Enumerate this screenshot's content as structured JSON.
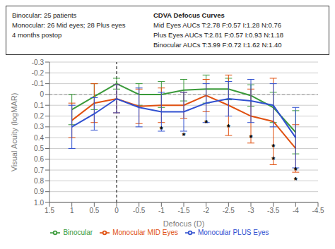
{
  "chart_data": {
    "type": "line",
    "title": "CDVA Defocus Curves",
    "subtitle": [
      "Binocular: 25 patients",
      "Monocular: 26 Mid eyes; 28 Plus eyes",
      "4 months postop"
    ],
    "annotations": [
      {
        "text": "Mid Eyes AUCs T:2.78 F:0.57 I:1.28 N:0.76"
      },
      {
        "text": "Plus Eyes AUCs T:2.81 F:0.57 I:0.93 N:1.18"
      },
      {
        "text": "Binocular AUCs T:3.99 F:0.72 I:1.62 N:1.40"
      },
      {
        "x": -1.0,
        "y": 0.3,
        "text": "*"
      },
      {
        "x": -1.5,
        "y": 0.36,
        "text": "*"
      },
      {
        "x": -2.0,
        "y": 0.24,
        "text": "*"
      },
      {
        "x": -2.5,
        "y": 0.28,
        "text": "*"
      },
      {
        "x": -3.0,
        "y": 0.38,
        "text": "*"
      },
      {
        "x": -3.5,
        "y": 0.46,
        "text": "*"
      },
      {
        "x": -3.5,
        "y": 0.58,
        "text": "*"
      },
      {
        "x": -4.0,
        "y": 0.68,
        "text": "*"
      },
      {
        "x": -4.0,
        "y": 0.77,
        "text": "*"
      }
    ],
    "x_label": "Defocus (D)",
    "y_label": "Visual Acuity (logMAR)",
    "x": [
      1.0,
      0.5,
      0.0,
      -0.5,
      -1.0,
      -1.5,
      -2.0,
      -2.5,
      -3.0,
      -3.5,
      -4.0
    ],
    "series": [
      {
        "name": "Binocular",
        "color": "#3a9a3a",
        "values": [
          0.14,
          0.02,
          -0.1,
          0.0,
          0.0,
          -0.04,
          -0.05,
          -0.05,
          0.01,
          0.12,
          0.35
        ],
        "error_upper": [
          0.14,
          0.12,
          0.05,
          0.1,
          0.12,
          0.1,
          0.13,
          0.1,
          0.1,
          0.14,
          0.2
        ],
        "error_lower": [
          0.14,
          0.12,
          0.05,
          0.1,
          0.12,
          0.1,
          0.13,
          0.1,
          0.1,
          0.14,
          0.2
        ]
      },
      {
        "name": "Monocular MID Eyes",
        "color": "#e05010",
        "values": [
          0.24,
          0.08,
          0.04,
          0.11,
          0.1,
          0.1,
          0.01,
          0.1,
          0.2,
          0.25,
          0.5
        ],
        "error_upper": [
          0.16,
          0.18,
          0.13,
          0.16,
          0.16,
          0.12,
          0.15,
          0.28,
          0.25,
          0.4,
          0.22
        ],
        "error_lower": [
          0.16,
          0.18,
          0.13,
          0.16,
          0.16,
          0.12,
          0.15,
          0.28,
          0.25,
          0.4,
          0.22
        ]
      },
      {
        "name": "Monocular PLUS Eyes",
        "color": "#3050d0",
        "values": [
          0.3,
          0.18,
          0.04,
          0.12,
          0.16,
          0.16,
          0.08,
          0.04,
          0.06,
          0.1,
          0.4
        ],
        "error_upper": [
          0.2,
          0.15,
          0.13,
          0.18,
          0.18,
          0.18,
          0.18,
          0.16,
          0.2,
          0.2,
          0.28
        ],
        "error_lower": [
          0.2,
          0.15,
          0.13,
          0.18,
          0.18,
          0.18,
          0.18,
          0.16,
          0.2,
          0.2,
          0.28
        ]
      }
    ],
    "xlim": [
      1.5,
      -4.5
    ],
    "ylim": [
      1.0,
      -0.3
    ],
    "xticks": [
      1.5,
      1,
      0.5,
      0,
      -0.5,
      -1,
      -1.5,
      -2,
      -2.5,
      -3,
      -3.5,
      -4,
      -4.5
    ],
    "yticks": [
      -0.3,
      -0.2,
      -0.1,
      0,
      0.1,
      0.2,
      0.3,
      0.4,
      0.5,
      0.6,
      0.7,
      0.8,
      0.9,
      {
        "value": 1.0,
        "label": "1.0"
      }
    ],
    "hlines": [
      0
    ],
    "vlines": [
      0
    ],
    "grid": "y",
    "legend": "bottom"
  }
}
